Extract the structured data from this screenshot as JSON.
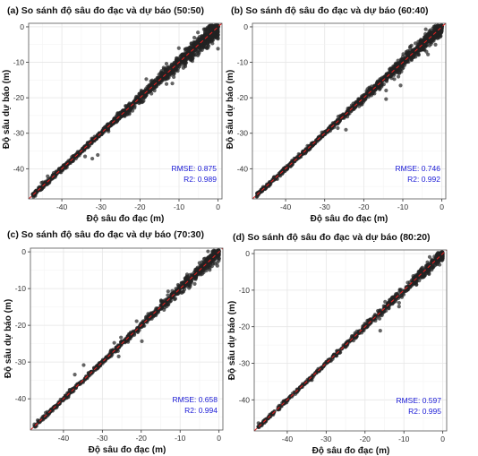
{
  "chart_data": [
    {
      "type": "scatter",
      "title": "(a) So sánh độ sâu đo đạc và dự báo (50:50)",
      "xlabel": "Độ sâu đo đạc (m)",
      "ylabel": "Độ sâu dự báo (m)",
      "xlim": [
        -48.5,
        1
      ],
      "ylim": [
        -48.5,
        1
      ],
      "xticks": [
        -40,
        -30,
        -20,
        -10,
        0
      ],
      "yticks": [
        0,
        -10,
        -20,
        -30,
        -40
      ],
      "grid": true,
      "reference_line": "y = x",
      "rmse_label": "RMSE: 0.875",
      "r2_label": "R2: 0.989",
      "rmse": 0.875,
      "r2": 0.989,
      "points_summary": {
        "x_min": -47.5,
        "x_max": 0,
        "approx_count": 1500,
        "spread_at_shallow_m": 4
      }
    },
    {
      "type": "scatter",
      "title": "(b) So sánh độ sâu đo đạc và dự báo (60:40)",
      "xlabel": "Độ sâu đo đạc (m)",
      "ylabel": "Độ sâu dự báo (m)",
      "xlim": [
        -48.5,
        1
      ],
      "ylim": [
        -48.5,
        1
      ],
      "xticks": [
        -40,
        -30,
        -20,
        -10,
        0
      ],
      "yticks": [
        0,
        -10,
        -20,
        -30,
        -40
      ],
      "grid": true,
      "reference_line": "y = x",
      "rmse_label": "RMSE: 0.746",
      "r2_label": "R2: 0.992",
      "rmse": 0.746,
      "r2": 0.992,
      "points_summary": {
        "x_min": -47.5,
        "x_max": 0,
        "approx_count": 1200,
        "spread_at_shallow_m": 3.4
      }
    },
    {
      "type": "scatter",
      "title": "(c) So sánh độ sâu đo đạc và dự báo (70:30)",
      "xlabel": "Độ sâu đo đạc (m)",
      "ylabel": "Độ sâu dự báo (m)",
      "xlim": [
        -48.5,
        1
      ],
      "ylim": [
        -48.5,
        1
      ],
      "xticks": [
        -40,
        -30,
        -20,
        -10,
        0
      ],
      "yticks": [
        0,
        -10,
        -20,
        -30,
        -40
      ],
      "grid": true,
      "reference_line": "y = x",
      "rmse_label": "RMSE: 0.658",
      "r2_label": "R2: 0.994",
      "rmse": 0.658,
      "r2": 0.994,
      "points_summary": {
        "x_min": -47.5,
        "x_max": 0,
        "approx_count": 900,
        "spread_at_shallow_m": 3
      }
    },
    {
      "type": "scatter",
      "title": "(d) So sánh độ sâu đo đạc và dự báo (80:20)",
      "xlabel": "Độ sâu đo đạc (m)",
      "ylabel": "Độ sâu dự báo (m)",
      "xlim": [
        -48.5,
        1
      ],
      "ylim": [
        -48.5,
        1
      ],
      "xticks": [
        -40,
        -30,
        -20,
        -10,
        0
      ],
      "yticks": [
        0,
        -10,
        -20,
        -30,
        -40
      ],
      "grid": true,
      "reference_line": "y = x",
      "rmse_label": "RMSE: 0.597",
      "r2_label": "R2: 0.995",
      "rmse": 0.597,
      "r2": 0.995,
      "points_summary": {
        "x_min": -47.5,
        "x_max": 0,
        "approx_count": 700,
        "spread_at_shallow_m": 2.6
      }
    }
  ],
  "colors": {
    "point": "#222222",
    "reference_line": "#e02020",
    "metric_text": "#1a1ad6",
    "grid": "#e6e6e6",
    "frame": "#555555"
  }
}
